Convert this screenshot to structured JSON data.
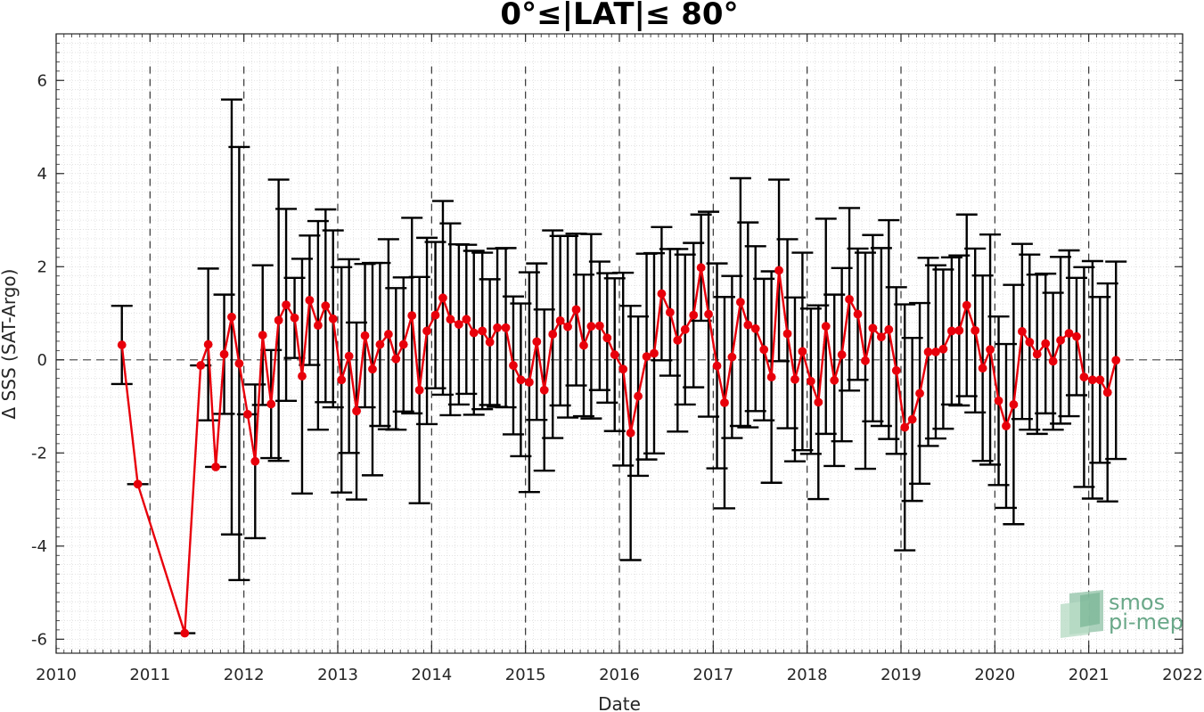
{
  "chart_data": {
    "type": "line",
    "title": "0°≤|LAT|≤ 80°",
    "xlabel": "Date",
    "ylabel": "Δ SSS (SAT-Argo)",
    "xlim": [
      2010,
      2022
    ],
    "ylim": [
      -6.3,
      7
    ],
    "x_ticks": [
      "2010",
      "2011",
      "2012",
      "2013",
      "2014",
      "2015",
      "2016",
      "2017",
      "2018",
      "2019",
      "2020",
      "2021",
      "2022"
    ],
    "y_ticks": [
      "-6",
      "-4",
      "-2",
      "0",
      "2",
      "4",
      "6"
    ],
    "grid": "minor dotted grid on",
    "reference_line": 0,
    "year_dividers": [
      2011,
      2012,
      2013,
      2014,
      2015,
      2016,
      2017,
      2018,
      2019,
      2020,
      2021
    ],
    "line_color": "#e8000b",
    "errorbar_color": "#000000",
    "series": [
      {
        "x": [
          2010.7,
          2010.87,
          2011.37,
          2011.54,
          2011.62,
          2011.7,
          2011.79,
          2011.87,
          2011.95,
          2012.04,
          2012.12,
          2012.2,
          2012.29,
          2012.37,
          2012.45,
          2012.54,
          2012.62,
          2012.7,
          2012.79,
          2012.87,
          2012.95,
          2013.04,
          2013.12,
          2013.2,
          2013.29,
          2013.37,
          2013.45,
          2013.54,
          2013.62,
          2013.7,
          2013.79,
          2013.87,
          2013.95,
          2014.04,
          2014.12,
          2014.2,
          2014.29,
          2014.37,
          2014.45,
          2014.54,
          2014.62,
          2014.7,
          2014.79,
          2014.87,
          2014.95,
          2015.04,
          2015.12,
          2015.2,
          2015.29,
          2015.37,
          2015.45,
          2015.54,
          2015.62,
          2015.7,
          2015.79,
          2015.87,
          2015.95,
          2016.04,
          2016.12,
          2016.2,
          2016.29,
          2016.37,
          2016.45,
          2016.54,
          2016.62,
          2016.7,
          2016.79,
          2016.87,
          2016.95,
          2017.04,
          2017.12,
          2017.2,
          2017.29,
          2017.37,
          2017.45,
          2017.54,
          2017.62,
          2017.7,
          2017.79,
          2017.87,
          2017.95,
          2018.04,
          2018.12,
          2018.2,
          2018.29,
          2018.37,
          2018.45,
          2018.54,
          2018.62,
          2018.7,
          2018.79,
          2018.87,
          2018.95,
          2019.04,
          2019.12,
          2019.2,
          2019.29,
          2019.37,
          2019.45,
          2019.54,
          2019.62,
          2019.7,
          2019.79,
          2019.87,
          2019.95,
          2020.04,
          2020.12,
          2020.2,
          2020.29,
          2020.37,
          2020.45,
          2020.54,
          2020.62,
          2020.7,
          2020.79,
          2020.87,
          2020.95,
          2021.04,
          2021.12,
          2021.2,
          2021.29
        ],
        "y": [
          0.32,
          -2.67,
          -5.87,
          -0.12,
          0.33,
          -2.3,
          0.12,
          0.92,
          -0.08,
          -1.17,
          -2.18,
          0.53,
          -0.95,
          0.85,
          1.18,
          0.9,
          -0.35,
          1.28,
          0.74,
          1.16,
          0.88,
          -0.43,
          0.08,
          -1.1,
          0.52,
          -0.2,
          0.33,
          0.55,
          0.02,
          0.33,
          0.95,
          -0.65,
          0.62,
          0.96,
          1.33,
          0.87,
          0.76,
          0.87,
          0.58,
          0.62,
          0.38,
          0.69,
          0.69,
          -0.12,
          -0.43,
          -0.48,
          0.39,
          -0.65,
          0.55,
          0.84,
          0.71,
          1.08,
          0.31,
          0.72,
          0.73,
          0.47,
          0.11,
          -0.2,
          -1.57,
          -0.78,
          0.07,
          0.14,
          1.42,
          1.02,
          0.42,
          0.65,
          0.96,
          1.98,
          0.98,
          -0.13,
          -0.92,
          0.06,
          1.24,
          0.75,
          0.67,
          0.22,
          -0.37,
          1.92,
          0.56,
          -0.42,
          0.18,
          -0.46,
          -0.91,
          0.72,
          -0.44,
          0.11,
          1.3,
          0.98,
          -0.02,
          0.68,
          0.49,
          0.65,
          -0.23,
          -1.45,
          -1.28,
          -0.72,
          0.17,
          0.17,
          0.23,
          0.62,
          0.63,
          1.17,
          0.63,
          -0.18,
          0.22,
          -0.88,
          -1.42,
          -0.96,
          0.61,
          0.38,
          0.12,
          0.35,
          -0.03,
          0.42,
          0.57,
          0.5,
          -0.37,
          -0.43,
          -0.43,
          -0.7,
          -0.01
        ],
        "err": [
          0.84,
          0,
          0,
          0,
          1.63,
          0,
          1.28,
          4.67,
          4.65,
          0,
          1.65,
          1.5,
          1.16,
          3.02,
          2.06,
          0.86,
          2.52,
          1.39,
          2.24,
          2.07,
          1.9,
          2.42,
          2.08,
          1.9,
          1.54,
          2.28,
          1.75,
          2.04,
          1.52,
          1.44,
          2.1,
          2.43,
          2.0,
          1.57,
          2.08,
          2.06,
          1.72,
          1.6,
          1.76,
          1.68,
          1.35,
          1.7,
          1.71,
          1.48,
          1.64,
          2.36,
          1.68,
          1.73,
          2.23,
          1.82,
          1.95,
          1.63,
          1.52,
          1.98,
          1.38,
          1.39,
          1.64,
          2.07,
          2.73,
          1.71,
          2.21,
          2.15,
          1.43,
          1.36,
          1.96,
          1.61,
          1.55,
          1.14,
          2.2,
          2.2,
          2.27,
          1.74,
          2.66,
          2.2,
          1.77,
          1.52,
          2.27,
          1.95,
          2.03,
          1.76,
          2.12,
          1.56,
          2.08,
          2.31,
          1.84,
          1.86,
          1.96,
          1.41,
          2.32,
          2.0,
          1.91,
          2.35,
          1.79,
          2.64,
          1.75,
          1.94,
          2.02,
          1.86,
          1.71,
          1.58,
          1.61,
          1.95,
          1.76,
          1.99,
          2.47,
          1.81,
          1.76,
          2.57,
          1.88,
          1.88,
          1.71,
          1.5,
          1.47,
          1.79,
          1.78,
          1.26,
          2.36,
          2.55,
          1.78,
          2.34,
          2.12
        ]
      }
    ]
  },
  "logo": {
    "line1": "smos",
    "line2": "pi-mep"
  }
}
